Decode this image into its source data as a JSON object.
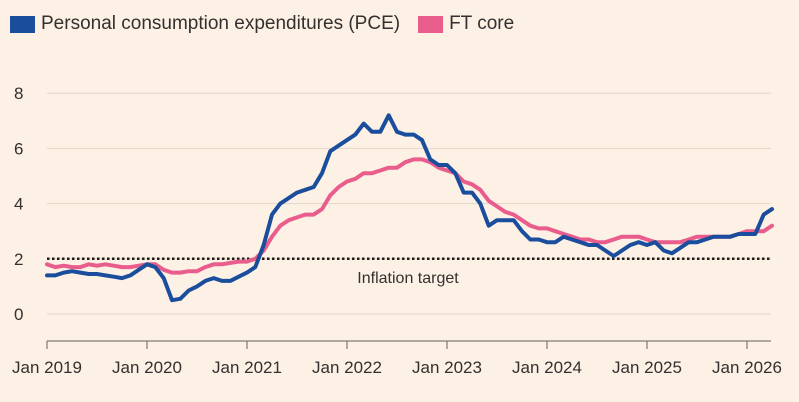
{
  "chart_data": {
    "type": "line",
    "title": "",
    "xlabel": "",
    "ylabel": "",
    "ylim": [
      0,
      8
    ],
    "y_ticks": [
      0,
      2,
      4,
      6,
      8
    ],
    "x_tick_labels": [
      "Jan 2019",
      "Jan 2020",
      "Jan 2021",
      "Jan 2022",
      "Jan 2023",
      "Jan 2024",
      "Jan 2025",
      "Jan 2026"
    ],
    "x_range": [
      "2019-01",
      "2026-03"
    ],
    "grid": "horizontal",
    "legend_position": "top-left",
    "target": {
      "value": 2,
      "label": "Inflation target"
    },
    "series": [
      {
        "name": "Personal consumption expenditures (PCE)",
        "color": "#1a4e9c",
        "points": [
          [
            "2019-01",
            1.4
          ],
          [
            "2019-02",
            1.4
          ],
          [
            "2019-03",
            1.5
          ],
          [
            "2019-04",
            1.55
          ],
          [
            "2019-05",
            1.5
          ],
          [
            "2019-06",
            1.45
          ],
          [
            "2019-07",
            1.45
          ],
          [
            "2019-08",
            1.4
          ],
          [
            "2019-09",
            1.35
          ],
          [
            "2019-10",
            1.3
          ],
          [
            "2019-11",
            1.4
          ],
          [
            "2019-12",
            1.6
          ],
          [
            "2020-01",
            1.8
          ],
          [
            "2020-02",
            1.7
          ],
          [
            "2020-03",
            1.3
          ],
          [
            "2020-04",
            0.5
          ],
          [
            "2020-05",
            0.55
          ],
          [
            "2020-06",
            0.85
          ],
          [
            "2020-07",
            1.0
          ],
          [
            "2020-08",
            1.2
          ],
          [
            "2020-09",
            1.3
          ],
          [
            "2020-10",
            1.2
          ],
          [
            "2020-11",
            1.2
          ],
          [
            "2020-12",
            1.35
          ],
          [
            "2021-01",
            1.5
          ],
          [
            "2021-02",
            1.7
          ],
          [
            "2021-03",
            2.5
          ],
          [
            "2021-04",
            3.6
          ],
          [
            "2021-05",
            4.0
          ],
          [
            "2021-06",
            4.2
          ],
          [
            "2021-07",
            4.4
          ],
          [
            "2021-08",
            4.5
          ],
          [
            "2021-09",
            4.6
          ],
          [
            "2021-10",
            5.1
          ],
          [
            "2021-11",
            5.9
          ],
          [
            "2021-12",
            6.1
          ],
          [
            "2022-01",
            6.3
          ],
          [
            "2022-02",
            6.5
          ],
          [
            "2022-03",
            6.9
          ],
          [
            "2022-04",
            6.6
          ],
          [
            "2022-05",
            6.6
          ],
          [
            "2022-06",
            7.2
          ],
          [
            "2022-07",
            6.6
          ],
          [
            "2022-08",
            6.5
          ],
          [
            "2022-09",
            6.5
          ],
          [
            "2022-10",
            6.3
          ],
          [
            "2022-11",
            5.6
          ],
          [
            "2022-12",
            5.4
          ],
          [
            "2023-01",
            5.4
          ],
          [
            "2023-02",
            5.1
          ],
          [
            "2023-03",
            4.4
          ],
          [
            "2023-04",
            4.4
          ],
          [
            "2023-05",
            4.0
          ],
          [
            "2023-06",
            3.2
          ],
          [
            "2023-07",
            3.4
          ],
          [
            "2023-08",
            3.4
          ],
          [
            "2023-09",
            3.4
          ],
          [
            "2023-10",
            3.0
          ],
          [
            "2023-11",
            2.7
          ],
          [
            "2023-12",
            2.7
          ],
          [
            "2024-01",
            2.6
          ],
          [
            "2024-02",
            2.6
          ],
          [
            "2024-03",
            2.8
          ],
          [
            "2024-04",
            2.7
          ],
          [
            "2024-05",
            2.6
          ],
          [
            "2024-06",
            2.5
          ],
          [
            "2024-07",
            2.5
          ],
          [
            "2024-08",
            2.3
          ],
          [
            "2024-09",
            2.1
          ],
          [
            "2024-10",
            2.3
          ],
          [
            "2024-11",
            2.5
          ],
          [
            "2024-12",
            2.6
          ],
          [
            "2025-01",
            2.5
          ],
          [
            "2025-02",
            2.6
          ],
          [
            "2025-03",
            2.3
          ],
          [
            "2025-04",
            2.2
          ],
          [
            "2025-05",
            2.4
          ],
          [
            "2025-06",
            2.6
          ],
          [
            "2025-07",
            2.6
          ],
          [
            "2025-08",
            2.7
          ],
          [
            "2025-09",
            2.8
          ],
          [
            "2025-10",
            2.8
          ],
          [
            "2025-11",
            2.8
          ],
          [
            "2025-12",
            2.9
          ],
          [
            "2026-01",
            2.9
          ],
          [
            "2026-02",
            2.9
          ],
          [
            "2026-03",
            3.6
          ],
          [
            "2026-04",
            3.8
          ]
        ]
      },
      {
        "name": "FT core",
        "color": "#e95d8c",
        "points": [
          [
            "2019-01",
            1.8
          ],
          [
            "2019-02",
            1.7
          ],
          [
            "2019-03",
            1.75
          ],
          [
            "2019-04",
            1.7
          ],
          [
            "2019-05",
            1.7
          ],
          [
            "2019-06",
            1.8
          ],
          [
            "2019-07",
            1.75
          ],
          [
            "2019-08",
            1.8
          ],
          [
            "2019-09",
            1.75
          ],
          [
            "2019-10",
            1.7
          ],
          [
            "2019-11",
            1.7
          ],
          [
            "2019-12",
            1.75
          ],
          [
            "2020-01",
            1.8
          ],
          [
            "2020-02",
            1.8
          ],
          [
            "2020-03",
            1.6
          ],
          [
            "2020-04",
            1.5
          ],
          [
            "2020-05",
            1.5
          ],
          [
            "2020-06",
            1.55
          ],
          [
            "2020-07",
            1.55
          ],
          [
            "2020-08",
            1.7
          ],
          [
            "2020-09",
            1.8
          ],
          [
            "2020-10",
            1.8
          ],
          [
            "2020-11",
            1.85
          ],
          [
            "2020-12",
            1.9
          ],
          [
            "2021-01",
            1.9
          ],
          [
            "2021-02",
            2.0
          ],
          [
            "2021-03",
            2.3
          ],
          [
            "2021-04",
            2.8
          ],
          [
            "2021-05",
            3.2
          ],
          [
            "2021-06",
            3.4
          ],
          [
            "2021-07",
            3.5
          ],
          [
            "2021-08",
            3.6
          ],
          [
            "2021-09",
            3.6
          ],
          [
            "2021-10",
            3.8
          ],
          [
            "2021-11",
            4.3
          ],
          [
            "2021-12",
            4.6
          ],
          [
            "2022-01",
            4.8
          ],
          [
            "2022-02",
            4.9
          ],
          [
            "2022-03",
            5.1
          ],
          [
            "2022-04",
            5.1
          ],
          [
            "2022-05",
            5.2
          ],
          [
            "2022-06",
            5.3
          ],
          [
            "2022-07",
            5.3
          ],
          [
            "2022-08",
            5.5
          ],
          [
            "2022-09",
            5.6
          ],
          [
            "2022-10",
            5.6
          ],
          [
            "2022-11",
            5.5
          ],
          [
            "2022-12",
            5.3
          ],
          [
            "2023-01",
            5.2
          ],
          [
            "2023-02",
            5.1
          ],
          [
            "2023-03",
            4.8
          ],
          [
            "2023-04",
            4.7
          ],
          [
            "2023-05",
            4.5
          ],
          [
            "2023-06",
            4.1
          ],
          [
            "2023-07",
            3.9
          ],
          [
            "2023-08",
            3.7
          ],
          [
            "2023-09",
            3.6
          ],
          [
            "2023-10",
            3.4
          ],
          [
            "2023-11",
            3.2
          ],
          [
            "2023-12",
            3.1
          ],
          [
            "2024-01",
            3.1
          ],
          [
            "2024-02",
            3.0
          ],
          [
            "2024-03",
            2.9
          ],
          [
            "2024-04",
            2.8
          ],
          [
            "2024-05",
            2.7
          ],
          [
            "2024-06",
            2.7
          ],
          [
            "2024-07",
            2.6
          ],
          [
            "2024-08",
            2.6
          ],
          [
            "2024-09",
            2.7
          ],
          [
            "2024-10",
            2.8
          ],
          [
            "2024-11",
            2.8
          ],
          [
            "2024-12",
            2.8
          ],
          [
            "2025-01",
            2.7
          ],
          [
            "2025-02",
            2.6
          ],
          [
            "2025-03",
            2.6
          ],
          [
            "2025-04",
            2.6
          ],
          [
            "2025-05",
            2.6
          ],
          [
            "2025-06",
            2.7
          ],
          [
            "2025-07",
            2.8
          ],
          [
            "2025-08",
            2.8
          ],
          [
            "2025-09",
            2.8
          ],
          [
            "2025-10",
            2.8
          ],
          [
            "2025-11",
            2.8
          ],
          [
            "2025-12",
            2.9
          ],
          [
            "2026-01",
            3.0
          ],
          [
            "2026-02",
            3.0
          ],
          [
            "2026-03",
            3.0
          ],
          [
            "2026-04",
            3.2
          ]
        ]
      }
    ]
  }
}
